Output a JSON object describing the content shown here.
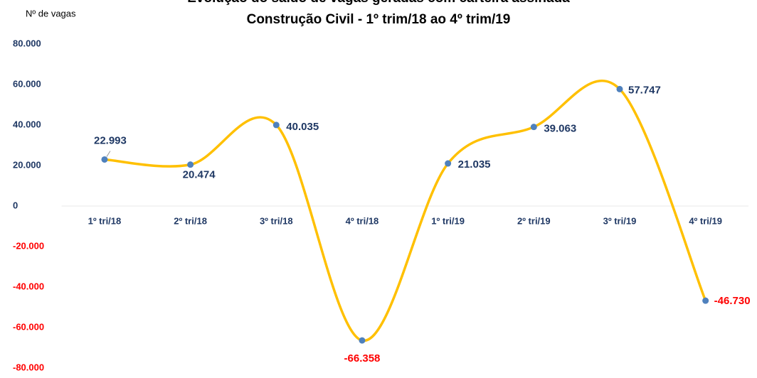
{
  "chart_data": {
    "type": "line",
    "title": "Evolução do saldo de vagas geradas  com carteira assinada",
    "subtitle": "Construção Civil - 1º trim/18 ao 4º trim/19",
    "y_label": "Nº de vagas",
    "categories": [
      "1º tri/18",
      "2º tri/18",
      "3º tri/18",
      "4º tri/18",
      "1º tri/19",
      "2º tri/19",
      "3º tri/19",
      "4º tri/19"
    ],
    "values": [
      22993,
      20474,
      40035,
      -66358,
      21035,
      39063,
      57747,
      -46730
    ],
    "value_labels": [
      "22.993",
      "20.474",
      "40.035",
      "-66.358",
      "21.035",
      "39.063",
      "57.747",
      "-46.730"
    ],
    "color": "#ffc000",
    "marker_color": "#4f81bd",
    "text_color": "#1f3864",
    "negative_color": "#ff0000",
    "smooth": true,
    "grid": false,
    "ylim": [
      -80000,
      80000
    ],
    "yticks": [
      {
        "value": 80000,
        "label": "80.000"
      },
      {
        "value": 60000,
        "label": "60.000"
      },
      {
        "value": 40000,
        "label": "40.000"
      },
      {
        "value": 20000,
        "label": "20.000"
      },
      0,
      {
        "value": -20000,
        "label": "-20.000"
      },
      {
        "value": -40000,
        "label": "-40.000"
      },
      {
        "value": -60000,
        "label": "-60.000"
      },
      {
        "value": -80000,
        "label": "-80.000"
      }
    ]
  }
}
